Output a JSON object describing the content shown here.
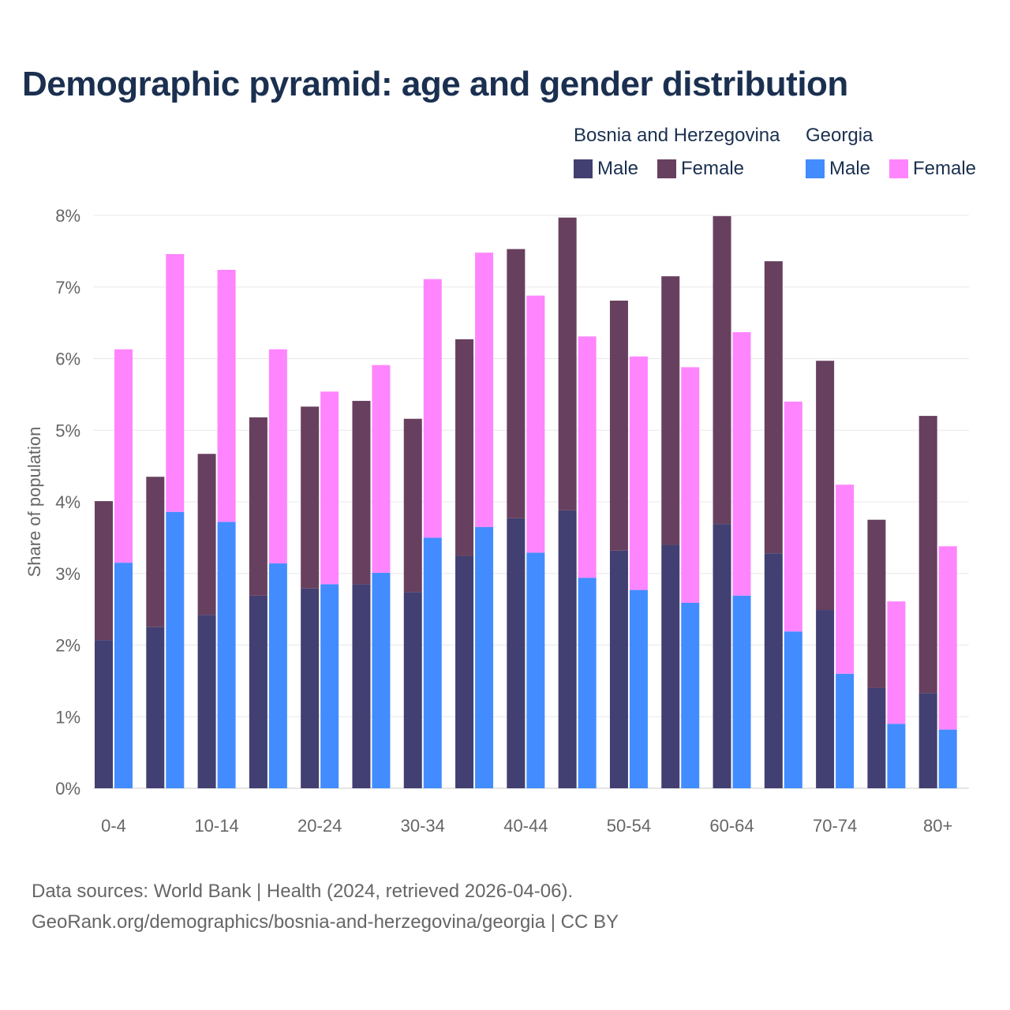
{
  "chart_data": {
    "type": "bar",
    "stacked": true,
    "title": "Demographic pyramid: age and gender distribution",
    "xlabel": "",
    "ylabel": "Share of population",
    "ylim": [
      0,
      8
    ],
    "yticks": [
      "0%",
      "1%",
      "2%",
      "3%",
      "4%",
      "5%",
      "6%",
      "7%",
      "8%"
    ],
    "grid": true,
    "legend_placement": "top-right",
    "categories": [
      "0-4",
      "5-9",
      "10-14",
      "15-19",
      "20-24",
      "25-29",
      "30-34",
      "35-39",
      "40-44",
      "45-49",
      "50-54",
      "55-59",
      "60-64",
      "65-69",
      "70-74",
      "75-79",
      "80+"
    ],
    "tick_labels": [
      "0-4",
      "10-14",
      "20-24",
      "30-34",
      "40-44",
      "50-54",
      "60-64",
      "70-74",
      "80+"
    ],
    "countries": [
      {
        "name": "Bosnia and Herzegovina",
        "series": [
          {
            "name": "Male",
            "color": "#423f72",
            "values": [
              2.07,
              2.25,
              2.42,
              2.69,
              2.79,
              2.85,
              2.74,
              3.24,
              3.77,
              3.88,
              3.32,
              3.4,
              3.69,
              3.28,
              2.49,
              1.4,
              1.33
            ]
          },
          {
            "name": "Female",
            "color": "#67405f",
            "values": [
              1.94,
              2.1,
              2.25,
              2.49,
              2.54,
              2.56,
              2.42,
              3.03,
              3.76,
              4.09,
              3.49,
              3.75,
              4.3,
              4.08,
              3.48,
              2.35,
              3.87
            ]
          }
        ]
      },
      {
        "name": "Georgia",
        "series": [
          {
            "name": "Male",
            "color": "#428cff",
            "values": [
              3.15,
              3.86,
              3.72,
              3.14,
              2.85,
              3.01,
              3.5,
              3.65,
              3.29,
              2.94,
              2.77,
              2.59,
              2.69,
              2.19,
              1.6,
              0.9,
              0.82
            ]
          },
          {
            "name": "Female",
            "color": "#ff85ff",
            "values": [
              2.98,
              3.6,
              3.52,
              2.99,
              2.69,
              2.9,
              3.61,
              3.83,
              3.59,
              3.37,
              3.26,
              3.29,
              3.68,
              3.21,
              2.64,
              1.71,
              2.56
            ]
          }
        ]
      }
    ]
  },
  "footer": {
    "source": "Data sources: World Bank | Health (2024, retrieved 2026-04-06).",
    "url": "GeoRank.org/demographics/bosnia-and-herzegovina/georgia | CC BY"
  }
}
